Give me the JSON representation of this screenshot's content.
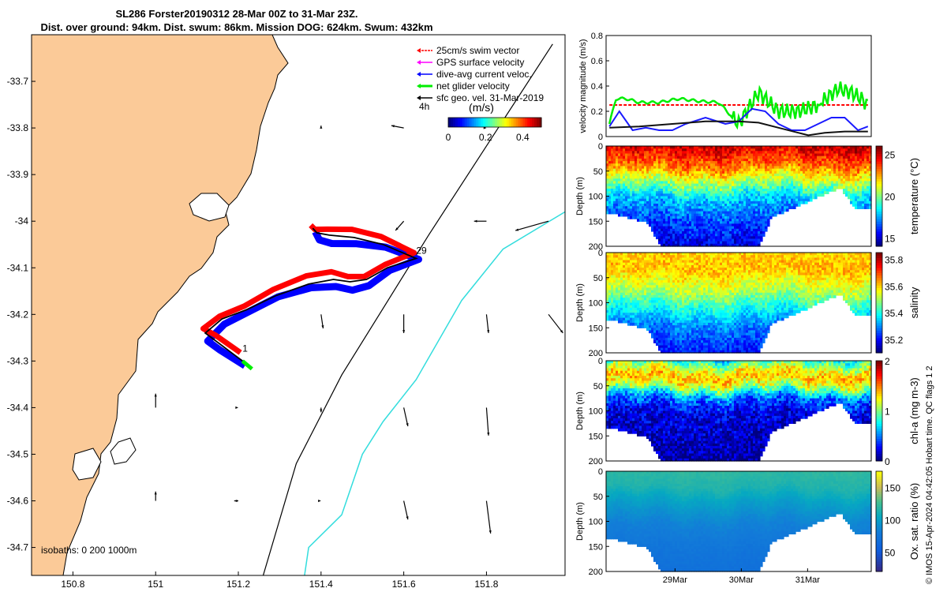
{
  "header": {
    "line1": "SL286 Forster20190312 28-Mar 00Z to 31-Mar 23Z.",
    "line2": "Dist. over ground: 94km. Dist. swum: 86km. Mission DOG: 624km. Swum: 432km"
  },
  "credit": "© IMOS 15-Apr-2024 04:42:05 Hobart time. QC flags 1  2",
  "colors": {
    "land": "#fbca98",
    "swim": "#ff0000",
    "gps": "#ff00ff",
    "current": "#0000ff",
    "net": "#00ee00",
    "geo": "#000000",
    "isobath_200": "#000000",
    "isobath_1000": "#33dddd"
  },
  "chart_data": [
    {
      "type": "scatter",
      "name": "map",
      "x_ticks": [
        "150.8",
        "151",
        "151.2",
        "151.4",
        "151.6",
        "151.8"
      ],
      "y_ticks": [
        "-33.7",
        "-33.8",
        "-33.9",
        "-34",
        "-34.1",
        "-34.2",
        "-34.3",
        "-34.4",
        "-34.5",
        "-34.6",
        "-34.7"
      ],
      "xlim": [
        150.7,
        151.99
      ],
      "ylim": [
        -34.76,
        -33.6
      ],
      "legend": {
        "placement": "top-right",
        "entries": [
          "25cm/s swim vector",
          "GPS surface velocity",
          "dive-avg current veloc.",
          "net glider velocity",
          "sfc geo. vel. 31-Mar-2019"
        ]
      },
      "scale_label": "4h",
      "colorbar": {
        "label": "(m/s)",
        "ticks": [
          "0",
          "0.2",
          "0.4"
        ],
        "range": [
          0,
          0.5
        ]
      },
      "isobaths_label": "isobaths: 0   200  1000m",
      "track_labels": [
        {
          "text": "1",
          "lon": 151.21,
          "lat": -34.28
        },
        {
          "text": "29",
          "lon": 151.63,
          "lat": -34.07
        }
      ],
      "track": [
        [
          151.21,
          -34.3
        ],
        [
          151.15,
          -34.26
        ],
        [
          151.12,
          -34.24
        ],
        [
          151.16,
          -34.21
        ],
        [
          151.22,
          -34.19
        ],
        [
          151.29,
          -34.16
        ],
        [
          151.37,
          -34.135
        ],
        [
          151.43,
          -34.125
        ],
        [
          151.47,
          -34.13
        ],
        [
          151.51,
          -34.125
        ],
        [
          151.56,
          -34.1
        ],
        [
          151.63,
          -34.08
        ],
        [
          151.55,
          -34.05
        ],
        [
          151.48,
          -34.035
        ],
        [
          151.42,
          -34.03
        ],
        [
          151.39,
          -34.025
        ],
        [
          151.38,
          -34.015
        ]
      ],
      "isobath_200": [
        [
          151.96,
          -33.62
        ],
        [
          151.66,
          -34.03
        ],
        [
          151.45,
          -34.33
        ],
        [
          151.34,
          -34.52
        ],
        [
          151.26,
          -34.76
        ]
      ],
      "isobath_1000": [
        [
          151.99,
          -33.98
        ],
        [
          151.84,
          -34.06
        ],
        [
          151.74,
          -34.17
        ],
        [
          151.63,
          -34.34
        ],
        [
          151.55,
          -34.43
        ],
        [
          151.5,
          -34.5
        ],
        [
          151.45,
          -34.63
        ],
        [
          151.37,
          -34.7
        ],
        [
          151.36,
          -34.76
        ]
      ],
      "geo_vectors": [
        [
          151.4,
          -33.8,
          0,
          0.005
        ],
        [
          151.6,
          -33.8,
          -0.03,
          0.005
        ],
        [
          151.8,
          -33.8,
          0,
          0
        ],
        [
          151.6,
          -34.0,
          -0.02,
          -0.02
        ],
        [
          151.8,
          -34.0,
          -0.03,
          0
        ],
        [
          151.95,
          -34.0,
          -0.08,
          -0.02
        ],
        [
          151.4,
          -34.2,
          0.005,
          -0.03
        ],
        [
          151.6,
          -34.2,
          0,
          -0.04
        ],
        [
          151.8,
          -34.2,
          0.005,
          -0.04
        ],
        [
          151.95,
          -34.2,
          0.035,
          -0.04
        ],
        [
          151.0,
          -34.4,
          0,
          0.03
        ],
        [
          151.2,
          -34.4,
          0,
          0
        ],
        [
          151.4,
          -34.4,
          0,
          -0.01
        ],
        [
          151.6,
          -34.4,
          0.01,
          -0.04
        ],
        [
          151.8,
          -34.4,
          0.005,
          -0.06
        ],
        [
          151.0,
          -34.6,
          0,
          0.02
        ],
        [
          151.2,
          -34.6,
          -0.01,
          0
        ],
        [
          151.4,
          -34.6,
          0,
          0
        ],
        [
          151.6,
          -34.6,
          0.01,
          -0.04
        ],
        [
          151.8,
          -34.6,
          0.01,
          -0.07
        ]
      ]
    },
    {
      "type": "line",
      "name": "velocity",
      "ylabel": "velocity magnitude (m/s)",
      "ylim": [
        0,
        0.8
      ],
      "y_ticks": [
        "0",
        "0.2",
        "0.4",
        "0.6",
        "0.8"
      ],
      "x_range_days": [
        28.0,
        32.0
      ],
      "series": [
        {
          "color": "#ff0000",
          "dashed": true,
          "x": [
            28.05,
            31.95
          ],
          "values": [
            0.25,
            0.25
          ]
        },
        {
          "color": "#00ee00",
          "x": [
            28.05,
            28.15,
            28.3,
            28.5,
            28.8,
            29.1,
            29.4,
            29.7,
            30.0,
            30.3,
            30.6,
            30.9,
            31.2,
            31.5,
            31.7,
            31.85,
            31.95
          ],
          "values": [
            0.1,
            0.3,
            0.3,
            0.27,
            0.27,
            0.3,
            0.28,
            0.27,
            0.1,
            0.35,
            0.2,
            0.2,
            0.25,
            0.38,
            0.35,
            0.3,
            0.25
          ]
        },
        {
          "color": "#1a1aff",
          "x": [
            28.05,
            28.2,
            28.4,
            28.6,
            28.8,
            29.0,
            29.2,
            29.5,
            29.8,
            30.0,
            30.2,
            30.4,
            30.6,
            30.8,
            31.0,
            31.2,
            31.4,
            31.6,
            31.8,
            31.95
          ],
          "values": [
            0.08,
            0.2,
            0.05,
            0.07,
            0.05,
            0.05,
            0.1,
            0.15,
            0.1,
            0.12,
            0.22,
            0.2,
            0.1,
            0.05,
            0.05,
            0.1,
            0.15,
            0.15,
            0.05,
            0.08
          ]
        },
        {
          "color": "#111111",
          "x": [
            28.05,
            28.5,
            29.0,
            29.5,
            29.8,
            30.0,
            30.3,
            30.6,
            30.9,
            31.05,
            31.3,
            31.6,
            31.95
          ],
          "values": [
            0.07,
            0.08,
            0.1,
            0.12,
            0.12,
            0.12,
            0.11,
            0.07,
            0.03,
            0.01,
            0.03,
            0.04,
            0.04
          ]
        }
      ]
    },
    {
      "type": "heatmap",
      "name": "temperature",
      "ylabel": "Depth (m)",
      "cbar_label": "temperature (°C)",
      "ylim": [
        0,
        200
      ],
      "y_ticks": [
        "0",
        "50",
        "100",
        "150",
        "200"
      ],
      "cbar_range": [
        14,
        26
      ],
      "cbar_ticks": [
        "15",
        "20",
        "25"
      ],
      "profile": [
        [
          0,
          25
        ],
        [
          40,
          23
        ],
        [
          70,
          20.5
        ],
        [
          100,
          18
        ],
        [
          140,
          16.5
        ],
        [
          200,
          15
        ]
      ],
      "variation": 2.0,
      "max_depth_ratio": 0.55
    },
    {
      "type": "heatmap",
      "name": "salinity",
      "ylabel": "Depth (m)",
      "cbar_label": "salinity",
      "ylim": [
        0,
        200
      ],
      "y_ticks": [
        "0",
        "50",
        "100",
        "150",
        "200"
      ],
      "cbar_range": [
        35.1,
        35.85
      ],
      "cbar_ticks": [
        "35.2",
        "35.4",
        "35.6",
        "35.8"
      ],
      "profile": [
        [
          0,
          35.6
        ],
        [
          30,
          35.62
        ],
        [
          60,
          35.55
        ],
        [
          80,
          35.5
        ],
        [
          100,
          35.42
        ],
        [
          140,
          35.3
        ],
        [
          200,
          35.2
        ]
      ],
      "variation": 0.1,
      "max_depth_ratio": 0.55
    },
    {
      "type": "heatmap",
      "name": "chla",
      "ylabel": "Depth (m)",
      "cbar_label": "chl-a (mg m-3)",
      "ylim": [
        0,
        200
      ],
      "y_ticks": [
        "0",
        "50",
        "100",
        "150",
        "200"
      ],
      "cbar_range": [
        0,
        2
      ],
      "cbar_ticks": [
        "0",
        "1",
        "2"
      ],
      "profile": [
        [
          0,
          0.9
        ],
        [
          20,
          1.3
        ],
        [
          30,
          1.4
        ],
        [
          45,
          1.2
        ],
        [
          70,
          0.5
        ],
        [
          100,
          0.2
        ],
        [
          200,
          0.05
        ]
      ],
      "variation": 0.4,
      "max_depth_ratio": 0.55
    },
    {
      "type": "heatmap",
      "name": "oxygen",
      "ylabel": "Depth (m)",
      "cbar_label": "Ox. sat. ratio (%)",
      "ylim": [
        0,
        200
      ],
      "y_ticks": [
        "0",
        "50",
        "100",
        "150",
        "200"
      ],
      "cbar_range": [
        20,
        175
      ],
      "cbar_ticks": [
        "50",
        "100",
        "150"
      ],
      "profile": [
        [
          0,
          120
        ],
        [
          30,
          115
        ],
        [
          60,
          100
        ],
        [
          100,
          85
        ],
        [
          150,
          75
        ],
        [
          200,
          70
        ]
      ],
      "variation": 5,
      "max_depth_ratio": 0.55,
      "x_ticks": [
        "29Mar",
        "30Mar",
        "31Mar"
      ]
    }
  ]
}
